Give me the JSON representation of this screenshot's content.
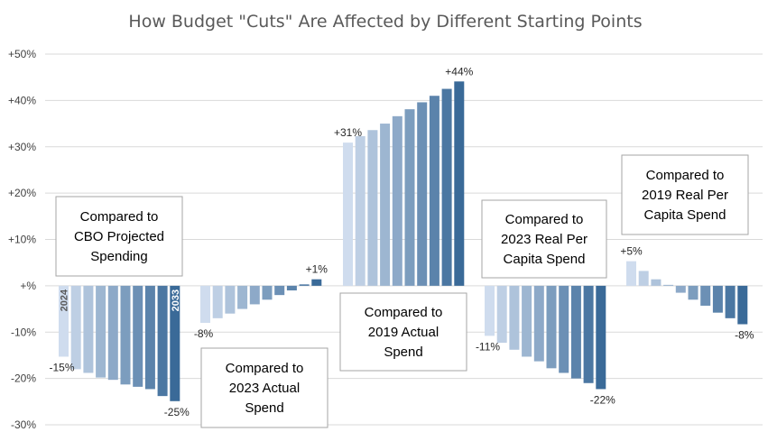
{
  "colors": {
    "bar_light": "#cfdcee",
    "bar_dark": "#3a6a98",
    "grid": "#d9d9d9"
  },
  "chart_data": {
    "type": "bar",
    "title": "How Budget \"Cuts\" Are Affected by Different Starting Points",
    "xlabel": "",
    "ylabel": "",
    "ylim": [
      -30,
      50
    ],
    "yticks": [
      "+50%",
      "+40%",
      "+30%",
      "+20%",
      "+10%",
      "+%",
      "-10%",
      "-20%",
      "-30%"
    ],
    "grid": true,
    "legend": "none",
    "groups": [
      {
        "name": "Compared to CBO Projected Spending",
        "box_lines": [
          "Compared to",
          "CBO Projected",
          "Spending"
        ],
        "start_year_label": "2024",
        "end_year_label": "2033",
        "first_label": "-15%",
        "last_label": "-25%",
        "values": [
          -15.3,
          -18.0,
          -18.8,
          -19.8,
          -20.3,
          -21.3,
          -21.8,
          -22.3,
          -23.8,
          -24.9
        ]
      },
      {
        "name": "Compared to 2023 Actual Spend",
        "box_lines": [
          "Compared to",
          "2023 Actual",
          "Spend"
        ],
        "first_label": "-8%",
        "last_label": "+1%",
        "values": [
          -8.0,
          -7.0,
          -6.0,
          -5.0,
          -4.0,
          -3.0,
          -2.0,
          -1.0,
          0.3,
          1.4
        ]
      },
      {
        "name": "Compared to 2019 Actual Spend",
        "box_lines": [
          "Compared to",
          "2019 Actual",
          "Spend"
        ],
        "first_label": "+31%",
        "last_label": "+44%",
        "values": [
          30.9,
          32.3,
          33.6,
          35.0,
          36.6,
          38.1,
          39.6,
          41.0,
          42.5,
          44.1
        ]
      },
      {
        "name": "Compared to 2023 Real Per Capita Spend",
        "box_lines": [
          "Compared to",
          "2023 Real Per",
          "Capita Spend"
        ],
        "first_label": "-11%",
        "last_label": "-22%",
        "values": [
          -10.8,
          -12.3,
          -13.8,
          -15.3,
          -16.3,
          -17.8,
          -18.8,
          -20.0,
          -21.0,
          -22.3
        ]
      },
      {
        "name": "Compared to 2019 Real Per Capita Spend",
        "box_lines": [
          "Compared to",
          "2019 Real Per",
          "Capita Spend"
        ],
        "first_label": "+5%",
        "last_label": "-8%",
        "values": [
          5.3,
          3.2,
          1.4,
          0.2,
          -1.5,
          -3.0,
          -4.3,
          -5.8,
          -7.0,
          -8.3
        ]
      }
    ]
  }
}
